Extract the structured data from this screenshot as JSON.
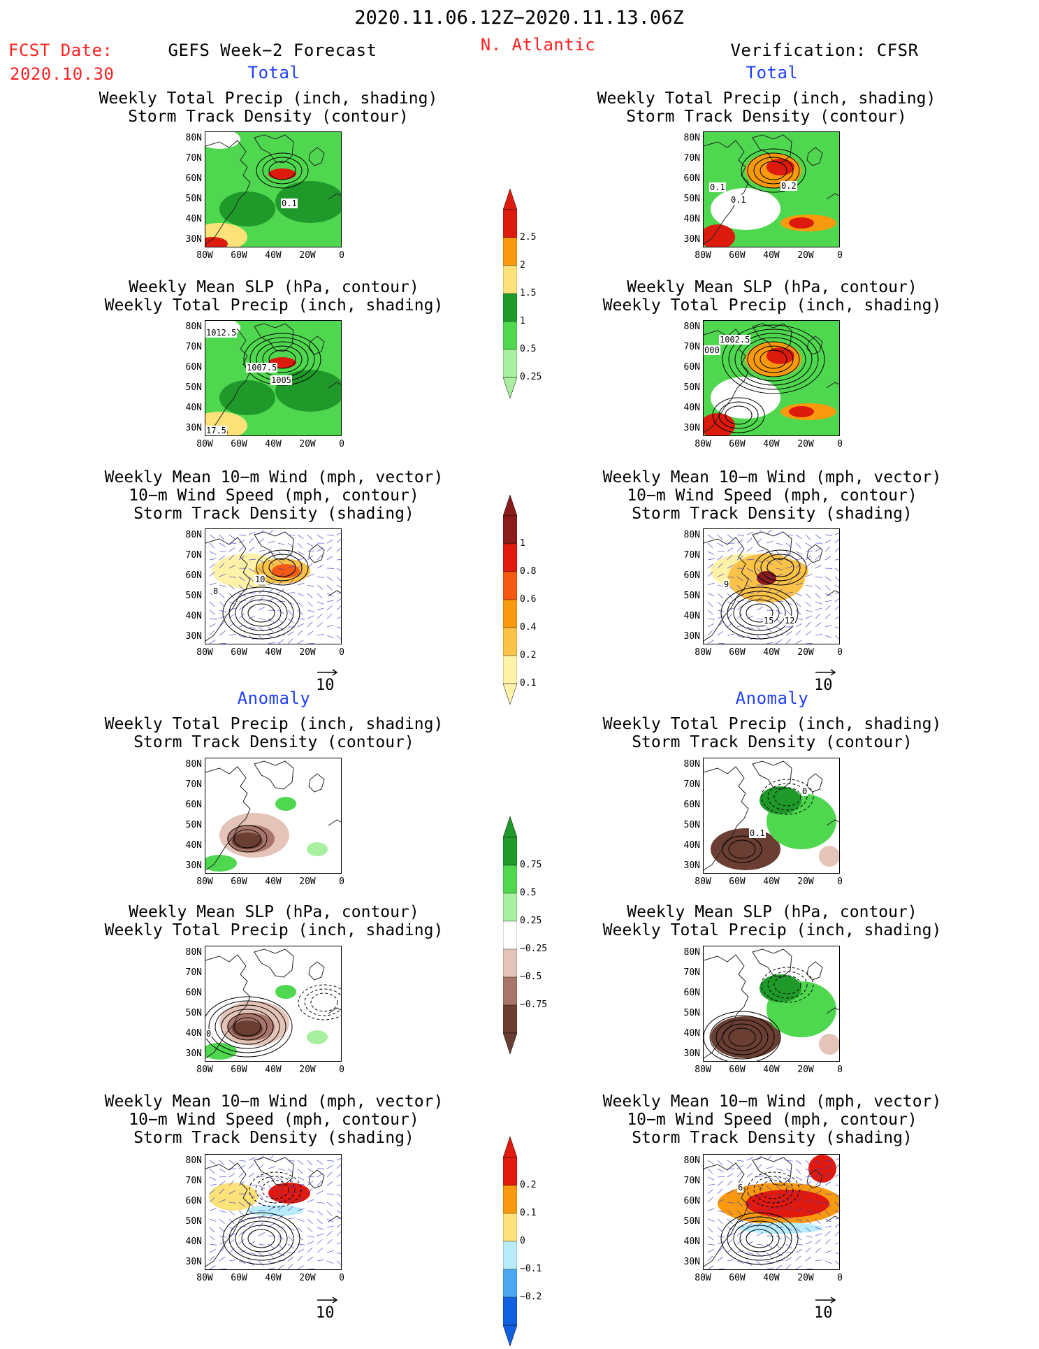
{
  "header": {
    "period": "2020.11.06.12Z−2020.11.13.06Z",
    "fcst_label": "FCST Date:",
    "fcst_date": "2020.10.30",
    "model": "GEFS Week−2 Forecast",
    "region": "N. Atlantic",
    "verification": "Verification: CFSR",
    "total_left": "Total",
    "total_right": "Total",
    "anomaly_left": "Anomaly",
    "anomaly_right": "Anomaly"
  },
  "titles": {
    "precip_track": [
      "Weekly Total Precip (inch, shading)",
      "Storm Track Density (contour)"
    ],
    "slp_precip": [
      "Weekly Mean SLP (hPa, contour)",
      "Weekly Total Precip (inch, shading)"
    ],
    "wind": [
      "Weekly Mean 10−m Wind (mph, vector)",
      "10−m Wind Speed (mph, contour)",
      "Storm Track Density (shading)"
    ]
  },
  "axes": {
    "lat": [
      "80N",
      "70N",
      "60N",
      "50N",
      "40N",
      "30N"
    ],
    "lon": [
      "80W",
      "60W",
      "40W",
      "20W",
      "0"
    ]
  },
  "vector_ref": "10",
  "contour_labels": {
    "fc_precip_track": [
      "0.1"
    ],
    "ver_precip_track": [
      "0.1",
      "0.1",
      "0.2"
    ],
    "fc_slp": [
      "1012.5",
      "1007.5",
      "1005",
      "17.5"
    ],
    "ver_slp": [
      "1002.5",
      "000"
    ],
    "fc_wind": [
      "10",
      "8"
    ],
    "ver_wind": [
      "9",
      "15",
      "12"
    ],
    "ver_anom_precip": [
      "0.1",
      "0"
    ],
    "fc_anom_slp": [
      "0"
    ],
    "ver_anom_wind": [
      "6"
    ]
  },
  "colorbars": {
    "precip_total": {
      "labels": [
        "2.5",
        "2",
        "1.5",
        "1",
        "0.5",
        "0.25"
      ],
      "colors": [
        "#dd1a0e",
        "#f99a0e",
        "#fde27a",
        "#1f9a2a",
        "#4fd84f",
        "#a8f0a0"
      ]
    },
    "track_total": {
      "labels": [
        "1",
        "0.8",
        "0.6",
        "0.4",
        "0.2",
        "0.1"
      ],
      "colors": [
        "#8b1a1a",
        "#e01a0e",
        "#f65a12",
        "#f99a0e",
        "#fbc248",
        "#fdf2a8"
      ]
    },
    "precip_anom": {
      "labels": [
        "0.75",
        "0.5",
        "0.25",
        "−0.25",
        "−0.5",
        "−0.75"
      ],
      "colors": [
        "#1f9a2a",
        "#4fd84f",
        "#a8f0a0",
        "#ffffff",
        "#e4c4b8",
        "#a8756a",
        "#6a3e32"
      ]
    },
    "track_anom": {
      "labels": [
        "0.2",
        "0.1",
        "0",
        "−0.1",
        "−0.2"
      ],
      "colors": [
        "#e01a0e",
        "#f99a0e",
        "#fde27a",
        "#b8ecfa",
        "#4ba8f0",
        "#1060e0"
      ]
    }
  }
}
